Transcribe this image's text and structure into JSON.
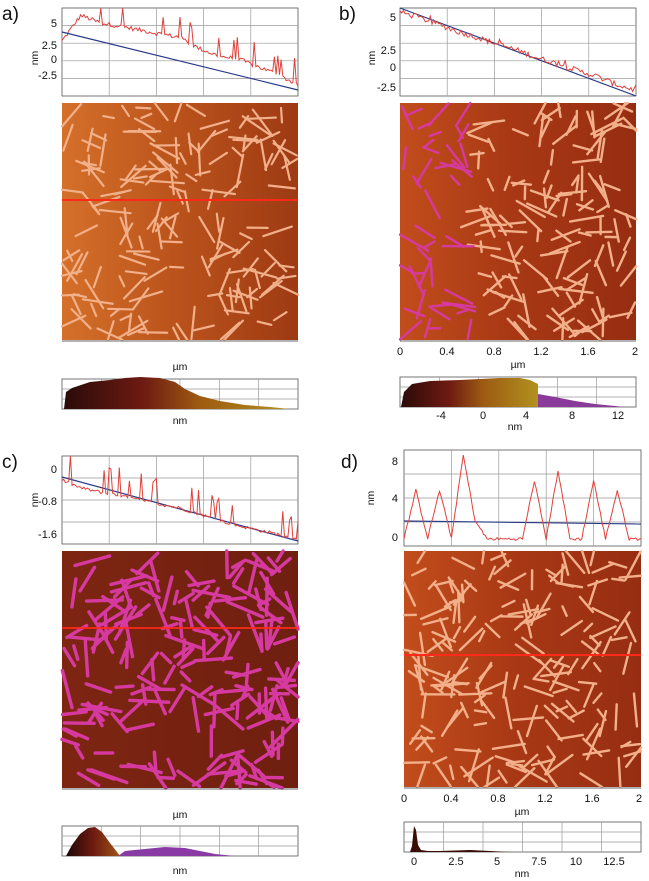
{
  "figure": {
    "panels": [
      {
        "id": "a",
        "label": "a)",
        "profile_ylabel": "nm",
        "profile_yticks": [
          "5",
          "2.5",
          "0",
          "-2.5"
        ],
        "axis_unit": "µm",
        "axis_ticks": [],
        "hist_unit": "nm",
        "hist_ticks": [],
        "map_palette": "orange",
        "overlay": false
      },
      {
        "id": "b",
        "label": "b)",
        "profile_ylabel": "nm",
        "profile_yticks": [
          "5",
          "2.5",
          "0",
          "-2.5"
        ],
        "axis_unit": "µm",
        "axis_ticks": [
          "0",
          "0.4",
          "0.8",
          "1.2",
          "1.6",
          "2"
        ],
        "hist_unit": "nm",
        "hist_ticks": [
          "-4",
          "0",
          "4",
          "8",
          "12"
        ],
        "map_palette": "red",
        "overlay": true
      },
      {
        "id": "c",
        "label": "c)",
        "profile_ylabel": "nm",
        "profile_yticks": [
          "0",
          "-0.8",
          "-1.6"
        ],
        "axis_unit": "µm",
        "axis_ticks": [],
        "hist_unit": "nm",
        "hist_ticks": [],
        "map_palette": "dark",
        "overlay": true
      },
      {
        "id": "d",
        "label": "d)",
        "profile_ylabel": "nm",
        "profile_yticks": [
          "8",
          "4",
          "0"
        ],
        "axis_unit": "µm",
        "axis_ticks": [
          "0",
          "0.4",
          "0.8",
          "1.2",
          "1.6",
          "2"
        ],
        "hist_unit": "nm",
        "hist_ticks": [
          "0",
          "2.5",
          "5",
          "7.5",
          "10",
          "12.5"
        ],
        "map_palette": "red",
        "overlay": false
      }
    ]
  },
  "chart_data": [
    {
      "type": "line",
      "panel": "a",
      "title": "",
      "xlabel": "",
      "ylabel": "nm",
      "ylim": [
        -4.5,
        7.5
      ],
      "series": [
        {
          "kind": "measured",
          "color": "#e0403a",
          "x": [
            0,
            0.08,
            0.16,
            0.25,
            0.33,
            0.41,
            0.5,
            0.58,
            0.66,
            0.75,
            0.83,
            0.91,
            1
          ],
          "y": [
            3,
            6.5,
            5.5,
            5,
            4.5,
            4,
            3.5,
            2,
            1,
            0.5,
            -0.5,
            -1.5,
            -3
          ]
        },
        {
          "kind": "fit",
          "color": "#283a88",
          "x": [
            0,
            1
          ],
          "y": [
            3.8,
            -3.8
          ]
        }
      ]
    },
    {
      "type": "line",
      "panel": "b",
      "title": "",
      "xlabel": "",
      "ylabel": "nm",
      "ylim": [
        -3.5,
        7.5
      ],
      "series": [
        {
          "kind": "measured",
          "color": "#e0403a",
          "x": [
            0,
            0.08,
            0.16,
            0.25,
            0.33,
            0.41,
            0.5,
            0.58,
            0.66,
            0.75,
            0.83,
            0.91,
            1
          ],
          "y": [
            7,
            6.3,
            5.5,
            4.5,
            3.8,
            3,
            2.2,
            1.3,
            0.6,
            -0.3,
            -1,
            -2,
            -2.8
          ]
        },
        {
          "kind": "fit",
          "color": "#283a88",
          "x": [
            0,
            1
          ],
          "y": [
            7.2,
            -3.2
          ]
        }
      ]
    },
    {
      "type": "line",
      "panel": "c",
      "title": "",
      "xlabel": "",
      "ylabel": "nm",
      "ylim": [
        -1.8,
        0.4
      ],
      "series": [
        {
          "kind": "measured",
          "color": "#e0403a",
          "x": [
            0,
            0.08,
            0.16,
            0.25,
            0.33,
            0.41,
            0.5,
            0.58,
            0.66,
            0.75,
            0.83,
            0.91,
            1
          ],
          "y": [
            -0.2,
            -0.4,
            -0.5,
            -0.6,
            -0.7,
            -0.8,
            -0.9,
            -1.05,
            -1.2,
            -1.35,
            -1.45,
            -1.55,
            -1.7
          ]
        },
        {
          "kind": "fit",
          "color": "#283a88",
          "x": [
            0,
            1
          ],
          "y": [
            -0.25,
            -1.75
          ]
        }
      ]
    },
    {
      "type": "line",
      "panel": "d",
      "title": "",
      "xlabel": "",
      "ylabel": "nm",
      "ylim": [
        -0.5,
        9
      ],
      "series": [
        {
          "kind": "measured",
          "color": "#e0403a",
          "x": [
            0,
            0.05,
            0.1,
            0.15,
            0.2,
            0.25,
            0.3,
            0.35,
            0.4,
            0.45,
            0.5,
            0.55,
            0.6,
            0.65,
            0.7,
            0.75,
            0.8,
            0.85,
            0.9,
            0.95,
            1
          ],
          "y": [
            0.2,
            5,
            0.3,
            5,
            0.3,
            8.5,
            2,
            0.2,
            0.2,
            0.2,
            0.2,
            6,
            0.2,
            7,
            0.2,
            0.2,
            6,
            0.2,
            5,
            0.2,
            0.2
          ]
        },
        {
          "kind": "fit",
          "color": "#283a88",
          "x": [
            0,
            1
          ],
          "y": [
            1.8,
            1.4
          ]
        }
      ]
    },
    {
      "type": "area",
      "panel": "b-histogram",
      "title": "",
      "xlabel": "nm",
      "xlim": [
        -7,
        15
      ],
      "x": [
        -7,
        -5,
        -4,
        -2,
        0,
        2,
        4,
        5,
        6,
        8,
        10,
        12,
        14
      ],
      "y": [
        0,
        0.5,
        0.7,
        0.8,
        0.85,
        0.9,
        0.95,
        0.25,
        0.2,
        0.1,
        0.04,
        0.02,
        0
      ]
    },
    {
      "type": "area",
      "panel": "d-histogram",
      "title": "",
      "xlabel": "nm",
      "xlim": [
        -0.5,
        14.5
      ],
      "x": [
        -0.5,
        -0.2,
        0,
        0.2,
        0.5,
        1,
        2.5,
        5,
        7.5,
        10,
        12.5,
        14.5
      ],
      "y": [
        0,
        0.2,
        1,
        0.6,
        0.1,
        0.03,
        0.01,
        0.02,
        0,
        0,
        0,
        0
      ]
    }
  ],
  "colors": {
    "orange_bg": "#c0541b",
    "red_bg": "#a83a14",
    "dark_bg": "#7a2111",
    "rod_light": "#f2b08a",
    "rod_pink": "#d63aa0",
    "line_red": "#ff2a1a",
    "profile_red": "#e0403a",
    "fit_blue": "#283a88"
  }
}
